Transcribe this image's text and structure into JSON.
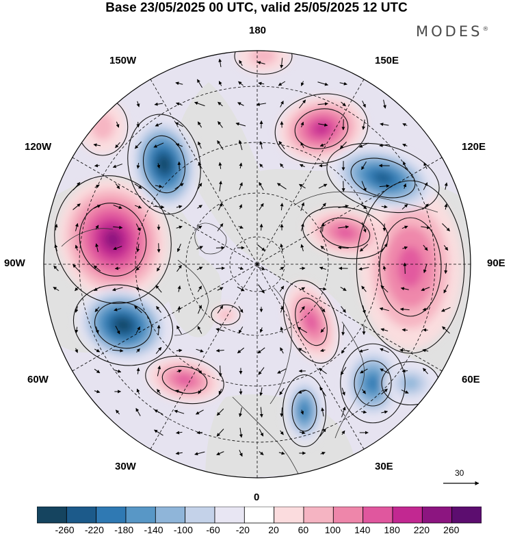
{
  "title": "Base 23/05/2025 00 UTC, valid 25/05/2025 12 UTC",
  "brand": {
    "name": "MODES",
    "mark": "®"
  },
  "longitude_labels": {
    "180": "180",
    "150W": "150W",
    "150E": "150E",
    "120W": "120W",
    "120E": "120E",
    "90W": "90W",
    "90E": "90E",
    "60W": "60W",
    "60E": "60E",
    "30W": "30W",
    "30E": "30E",
    "0": "0"
  },
  "reference_vector": {
    "label": "30",
    "icon": "arrow-right-icon"
  },
  "colorbar": {
    "tick_labels": [
      "-260",
      "-220",
      "-180",
      "-140",
      "-100",
      "-60",
      "-20",
      "20",
      "60",
      "100",
      "140",
      "180",
      "220",
      "260"
    ],
    "colors": [
      "#15445f",
      "#1c5a8a",
      "#2f79b3",
      "#5897c6",
      "#8fb5d9",
      "#c4d2e9",
      "#e8e6f3",
      "#ffffff",
      "#fbdcde",
      "#f5b4c2",
      "#ee86aa",
      "#e0579e",
      "#c22891",
      "#8c1580",
      "#5c0d6f"
    ]
  },
  "projection": {
    "type": "north-polar-stereographic",
    "meridian_spacing_deg": 30,
    "latitude_circles": "dashed"
  },
  "anomaly_field": [
    {
      "sign": "positive",
      "location": "near 90W, mid-latitudes",
      "level": 220
    },
    {
      "sign": "positive",
      "location": "near 130E",
      "level": 180
    },
    {
      "sign": "positive",
      "location": "near 180",
      "level": 60
    },
    {
      "sign": "positive",
      "location": "near 150W",
      "level": 60
    },
    {
      "sign": "positive",
      "location": "near 60W",
      "level": 140
    },
    {
      "sign": "positive",
      "location": "near 90E",
      "level": 140
    },
    {
      "sign": "positive",
      "location": "near 80E",
      "level": 140
    },
    {
      "sign": "positive",
      "location": "near 45E",
      "level": 140
    },
    {
      "sign": "positive",
      "location": "near 10E",
      "level": 60
    },
    {
      "sign": "negative",
      "location": "near 120W",
      "level": -220
    },
    {
      "sign": "negative",
      "location": "near 115E",
      "level": -180
    },
    {
      "sign": "negative",
      "location": "near 70W",
      "level": -220
    },
    {
      "sign": "negative",
      "location": "near 45E",
      "level": -140
    },
    {
      "sign": "negative",
      "location": "near 20E",
      "level": -140
    },
    {
      "sign": "negative",
      "location": "near 65E",
      "level": -60
    }
  ]
}
